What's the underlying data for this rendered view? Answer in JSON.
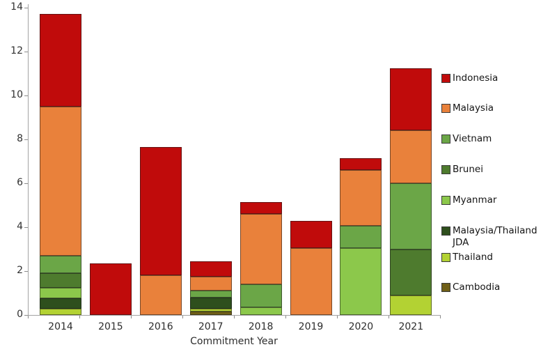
{
  "chart_data": {
    "type": "bar",
    "stacked": true,
    "title": "",
    "xlabel": "Commitment Year",
    "ylabel": "",
    "ylim": [
      0,
      14
    ],
    "yticks": [
      0,
      2,
      4,
      6,
      8,
      10,
      12,
      14
    ],
    "grid": false,
    "legend_position": "right",
    "categories": [
      "2014",
      "2015",
      "2016",
      "2017",
      "2018",
      "2019",
      "2020",
      "2021"
    ],
    "series": [
      {
        "name": "Cambodia",
        "color": "#6F5F17",
        "values": [
          0,
          0,
          0,
          0.15,
          0,
          0,
          0,
          0
        ]
      },
      {
        "name": "Thailand",
        "color": "#B3D233",
        "values": [
          0.3,
          0,
          0,
          0.15,
          0,
          0,
          0,
          0.9
        ]
      },
      {
        "name": "Malaysia/Thailand JDA",
        "color": "#2E4F1D",
        "values": [
          0.45,
          0,
          0,
          0.5,
          0,
          0,
          0,
          0
        ]
      },
      {
        "name": "Myanmar",
        "color": "#8CC84B",
        "values": [
          0.5,
          0,
          0,
          0,
          0.35,
          0,
          3.05,
          0
        ]
      },
      {
        "name": "Brunei",
        "color": "#4E7B2E",
        "values": [
          0.65,
          0,
          0,
          0,
          0,
          0,
          0,
          2.1
        ]
      },
      {
        "name": "Vietnam",
        "color": "#6BA647",
        "values": [
          0.8,
          0,
          0,
          0.3,
          1.05,
          0,
          1.0,
          3.0
        ]
      },
      {
        "name": "Malaysia",
        "color": "#E9813B",
        "values": [
          6.8,
          0,
          1.8,
          0.65,
          3.2,
          3.05,
          2.55,
          2.4
        ]
      },
      {
        "name": "Indonesia",
        "color": "#C00B0B",
        "values": [
          4.2,
          2.35,
          5.85,
          0.7,
          0.55,
          1.25,
          0.55,
          2.85
        ]
      }
    ],
    "legend_entries": [
      {
        "label": "Indonesia",
        "color": "#C00B0B"
      },
      {
        "label": "Malaysia",
        "color": "#E9813B"
      },
      {
        "label": "Vietnam",
        "color": "#6BA647"
      },
      {
        "label": "Brunei",
        "color": "#4E7B2E"
      },
      {
        "label": "Myanmar",
        "color": "#8CC84B"
      },
      {
        "label": "Malaysia/Thailand JDA",
        "color": "#2E4F1D"
      },
      {
        "label": "Thailand",
        "color": "#B3D233"
      },
      {
        "label": "Cambodia",
        "color": "#6F5F17"
      }
    ]
  }
}
